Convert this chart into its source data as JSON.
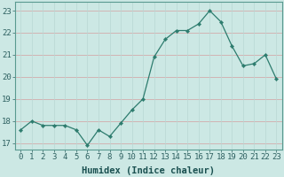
{
  "xlabel": "Humidex (Indice chaleur)",
  "ylabel": "",
  "x": [
    0,
    1,
    2,
    3,
    4,
    5,
    6,
    7,
    8,
    9,
    10,
    11,
    12,
    13,
    14,
    15,
    16,
    17,
    18,
    19,
    20,
    21,
    22,
    23
  ],
  "y": [
    17.6,
    18.0,
    17.8,
    17.8,
    17.8,
    17.6,
    16.9,
    17.6,
    17.3,
    17.9,
    18.5,
    19.0,
    20.9,
    21.7,
    22.1,
    22.1,
    22.4,
    23.0,
    22.5,
    21.4,
    20.5,
    20.6,
    21.0,
    19.9
  ],
  "ylim": [
    16.7,
    23.4
  ],
  "yticks": [
    17,
    18,
    19,
    20,
    21,
    22,
    23
  ],
  "xticks": [
    0,
    1,
    2,
    3,
    4,
    5,
    6,
    7,
    8,
    9,
    10,
    11,
    12,
    13,
    14,
    15,
    16,
    17,
    18,
    19,
    20,
    21,
    22,
    23
  ],
  "line_color": "#2d7c6e",
  "marker_color": "#2d7c6e",
  "bg_color": "#cce8e4",
  "grid_color_h": "#d4a0a0",
  "grid_color_v": "#b8d8d4",
  "border_color": "#5a9a90",
  "tick_color": "#2d6060",
  "label_color": "#1a5050",
  "xlabel_fontsize": 7.5,
  "tick_fontsize": 6.5,
  "marker": "D",
  "markersize": 2.2,
  "linewidth": 0.9
}
